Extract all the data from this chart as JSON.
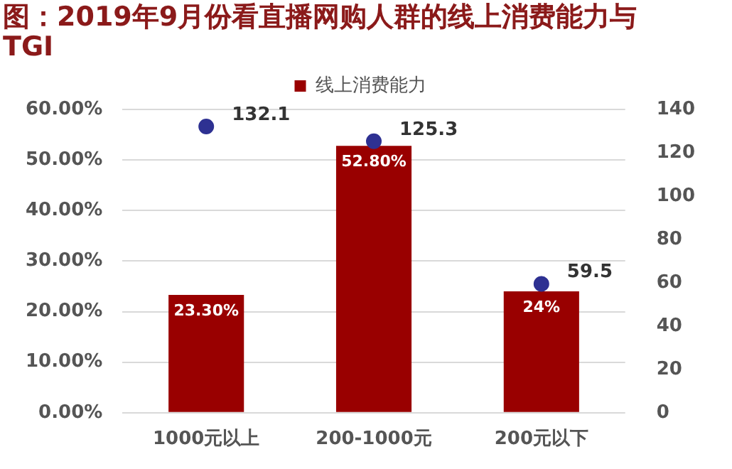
{
  "chart_data": {
    "type": "bar",
    "title": "图：2019年9月份看直播网购人群的线上消费能力与TGI",
    "categories": [
      "1000元以上",
      "200-1000元",
      "200元以下"
    ],
    "series": [
      {
        "name": "线上消费能力",
        "color": "#990000",
        "values": [
          23.3,
          52.8,
          24
        ],
        "value_labels": [
          "23.30%",
          "52.80%",
          "24%"
        ]
      },
      {
        "type": "scatter",
        "axis": "y2",
        "color": "#2e3192",
        "x": [
          "1000元以上",
          "200-1000元",
          "200元以下"
        ],
        "values": [
          132.1,
          125.3,
          59.5
        ],
        "value_labels": [
          "132.1",
          "125.3",
          "59.5"
        ]
      }
    ],
    "ylim": [
      0,
      60
    ],
    "yticks": [
      {
        "value": 0,
        "label": "0.00%"
      },
      {
        "value": 10,
        "label": "10.00%"
      },
      {
        "value": 20,
        "label": "20.00%"
      },
      {
        "value": 30,
        "label": "30.00%"
      },
      {
        "value": 40,
        "label": "40.00%"
      },
      {
        "value": 50,
        "label": "50.00%"
      },
      {
        "value": 60,
        "label": "60.00%"
      }
    ],
    "y2lim": [
      0,
      140
    ],
    "y2ticks": [
      0,
      20,
      40,
      60,
      80,
      100,
      120,
      140
    ],
    "grid": "y",
    "legend": "top",
    "marker": "circle"
  }
}
